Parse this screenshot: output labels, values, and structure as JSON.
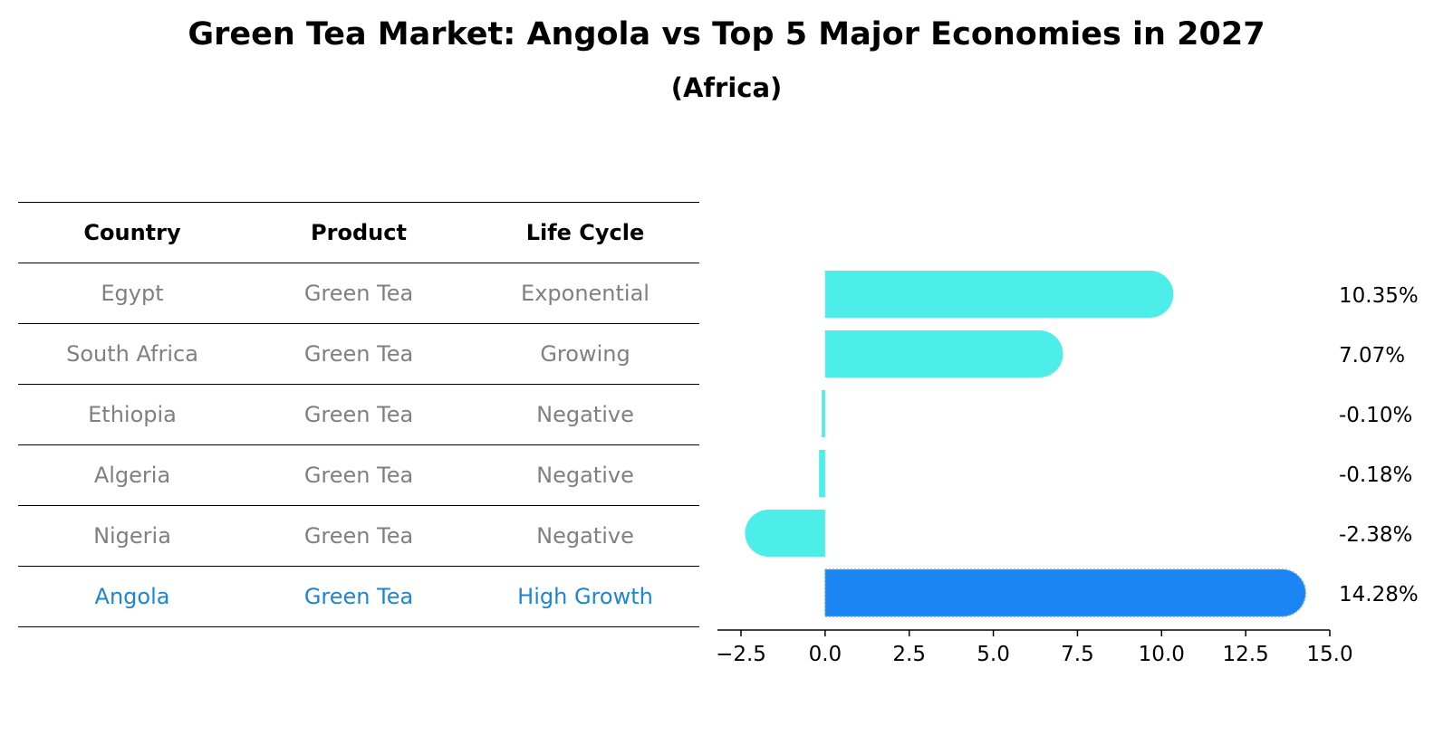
{
  "title": "Green Tea Market: Angola vs Top 5 Major Economies in 2027",
  "subtitle": "(Africa)",
  "table": {
    "headers": [
      "Country",
      "Product",
      "Life Cycle"
    ],
    "rows": [
      [
        "Egypt",
        "Green Tea",
        "Exponential"
      ],
      [
        "South Africa",
        "Green Tea",
        "Growing"
      ],
      [
        "Ethiopia",
        "Green Tea",
        "Negative"
      ],
      [
        "Algeria",
        "Green Tea",
        "Negative"
      ],
      [
        "Nigeria",
        "Green Tea",
        "Negative"
      ],
      [
        "Angola",
        "Green Tea",
        "High Growth"
      ]
    ],
    "highlight_row": 5
  },
  "chart_data": {
    "type": "bar",
    "orientation": "horizontal",
    "categories": [
      "Egypt",
      "South Africa",
      "Ethiopia",
      "Algeria",
      "Nigeria",
      "Angola"
    ],
    "values": [
      10.35,
      7.07,
      -0.1,
      -0.18,
      -2.38,
      14.28
    ],
    "value_labels": [
      "10.35%",
      "7.07%",
      "-0.10%",
      "-0.18%",
      "-2.38%",
      "14.28%"
    ],
    "xlim": [
      -3.2,
      15.0
    ],
    "xticks": [
      -2.5,
      0.0,
      2.5,
      5.0,
      7.5,
      10.0,
      12.5,
      15.0
    ],
    "xtick_labels": [
      "−2.5",
      "0.0",
      "2.5",
      "5.0",
      "7.5",
      "10.0",
      "12.5",
      "15.0"
    ],
    "highlight_index": 5,
    "colors": {
      "bar": "#4dede9",
      "highlight": "#1a85f3",
      "text_muted": "#808080",
      "highlight_text": "#1c86d4"
    },
    "xlabel": "",
    "ylabel": "",
    "grid": false
  }
}
